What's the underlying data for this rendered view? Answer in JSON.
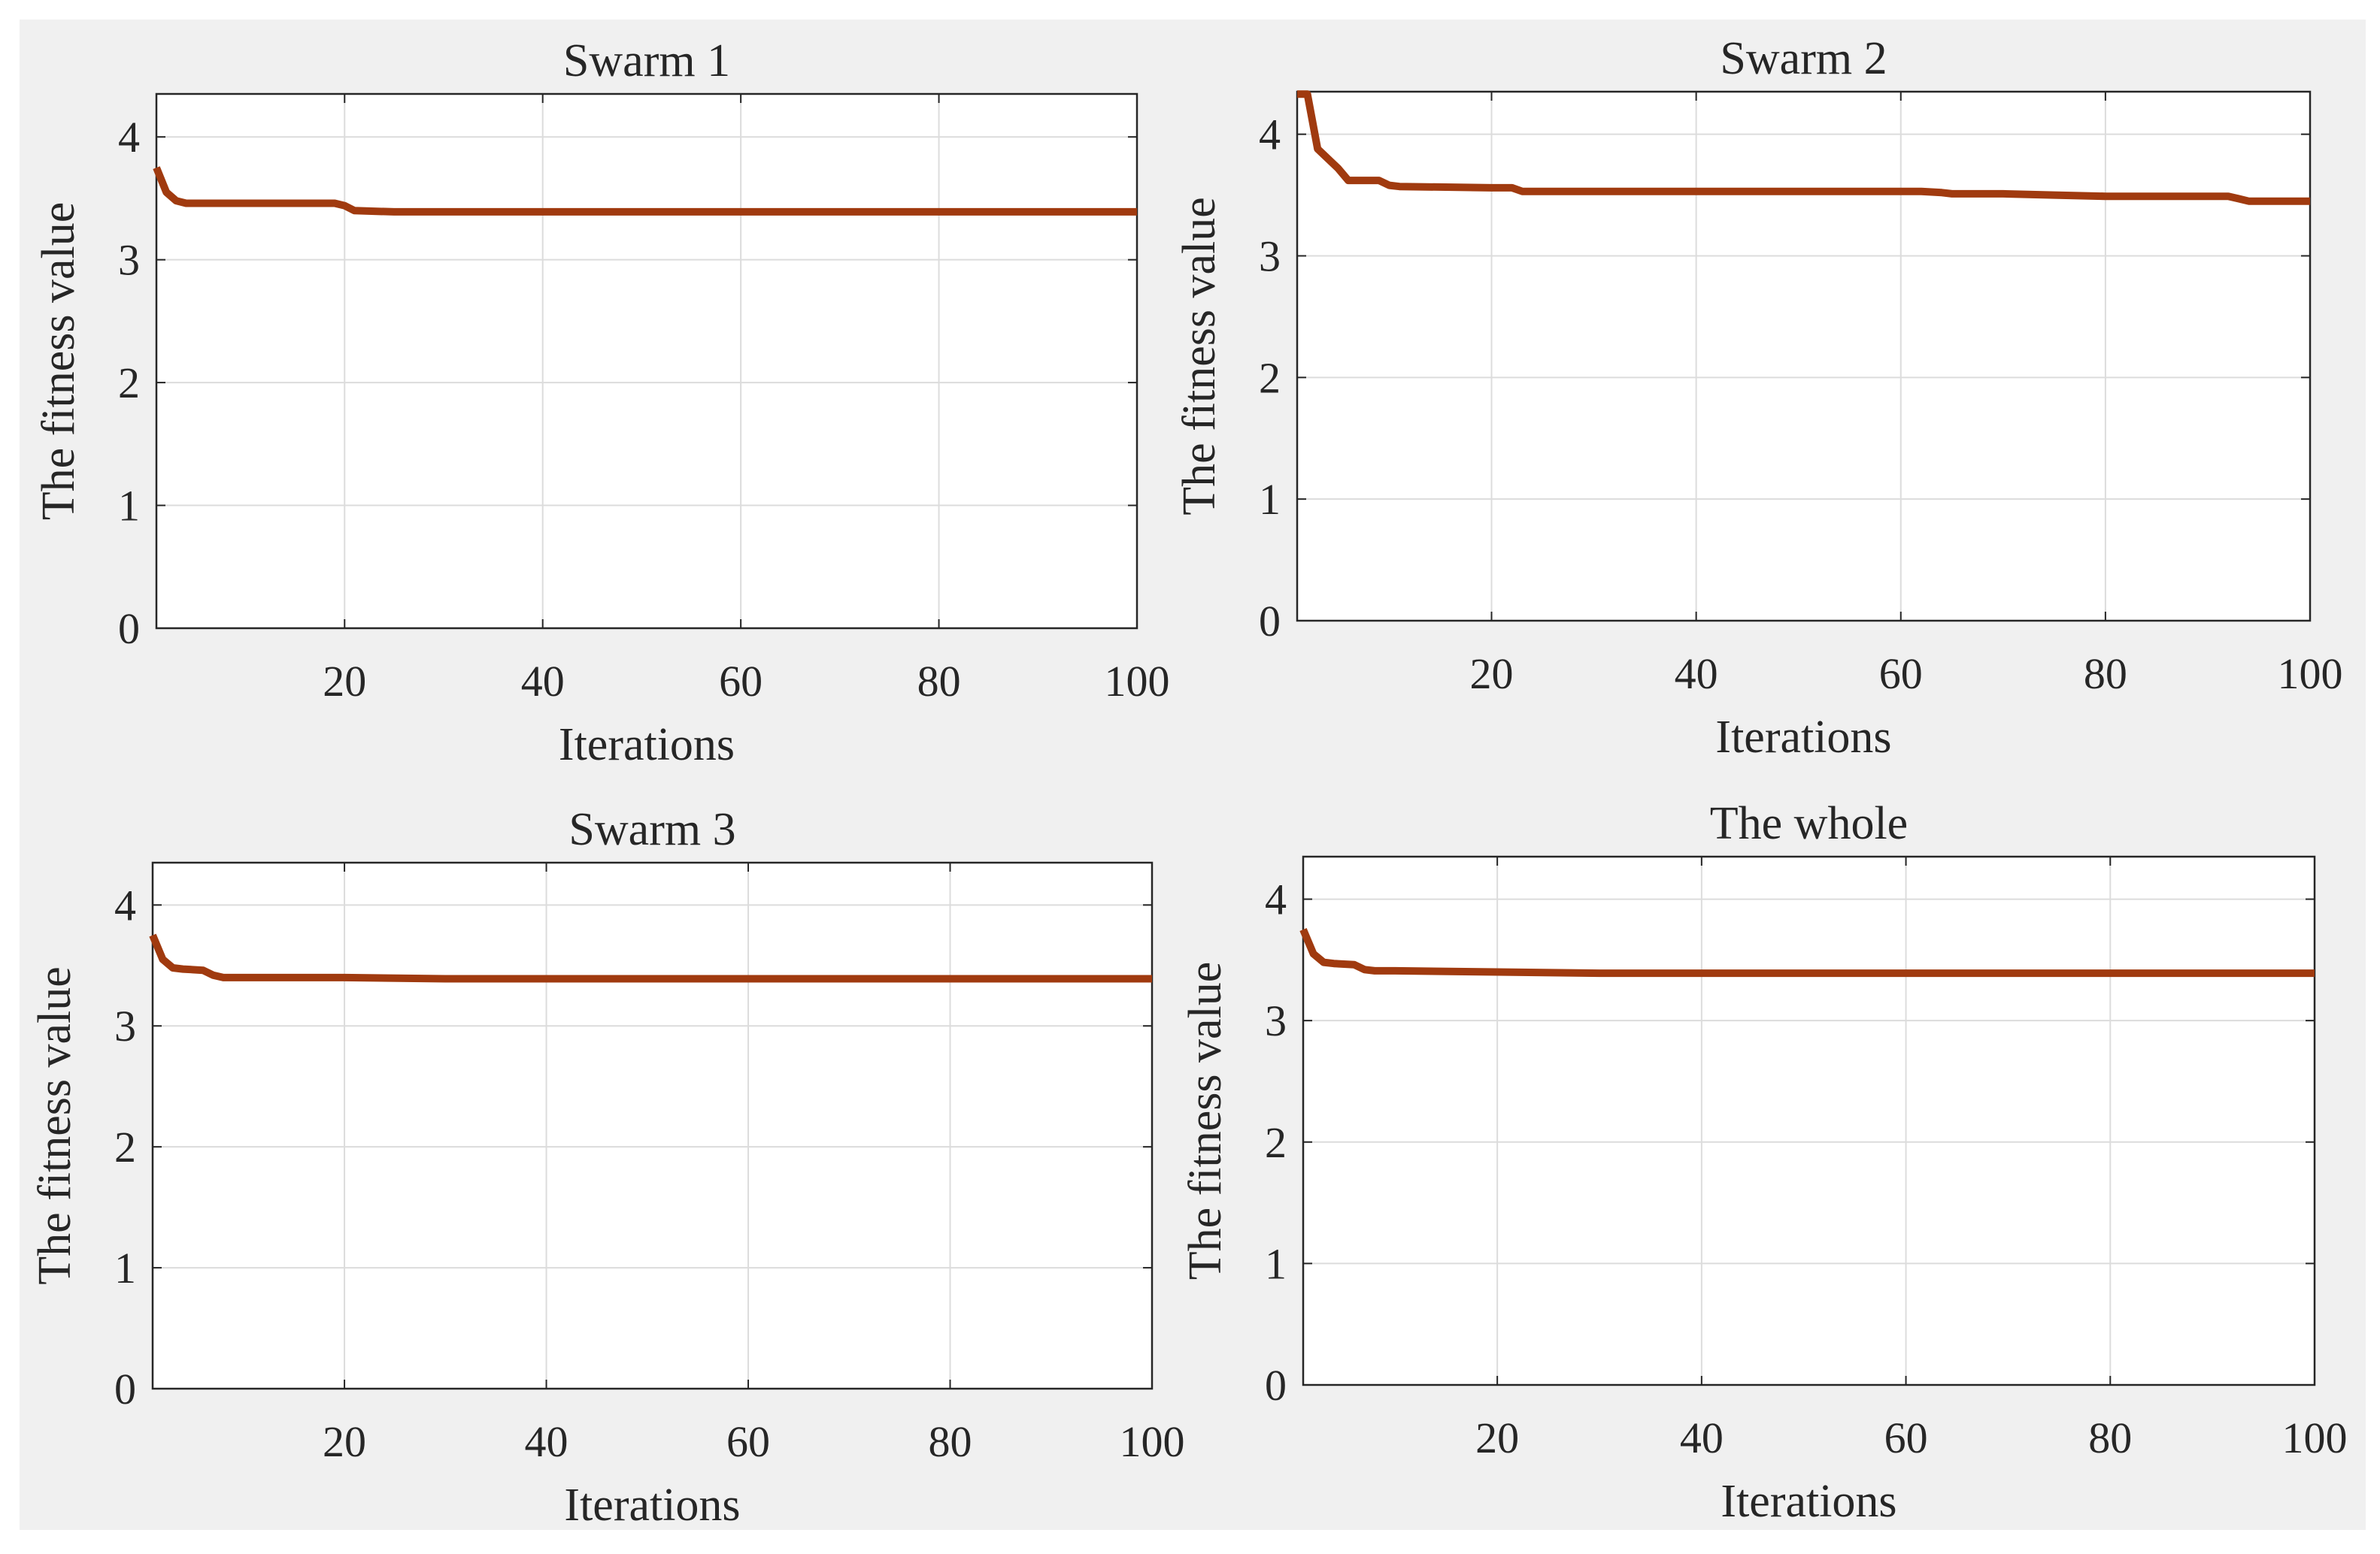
{
  "chart_data": [
    {
      "type": "line",
      "title": "Swarm 1",
      "xlabel": "Iterations",
      "ylabel": "The fitness value",
      "xlim": [
        1,
        100
      ],
      "ylim": [
        0,
        4.35
      ],
      "xticks": [
        20,
        40,
        60,
        80,
        100
      ],
      "yticks": [
        0,
        1,
        2,
        3,
        4
      ],
      "grid": true,
      "line_color": "#a03a0f",
      "series": [
        {
          "name": "fitness",
          "x": [
            1,
            2,
            3,
            4,
            5,
            10,
            15,
            19,
            20,
            21,
            25,
            40,
            60,
            80,
            100
          ],
          "values": [
            3.75,
            3.55,
            3.48,
            3.46,
            3.46,
            3.46,
            3.46,
            3.46,
            3.44,
            3.4,
            3.39,
            3.39,
            3.39,
            3.39,
            3.39
          ]
        }
      ]
    },
    {
      "type": "line",
      "title": "Swarm 2",
      "xlabel": "Iterations",
      "ylabel": "The fitness value",
      "xlim": [
        1,
        100
      ],
      "ylim": [
        0,
        4.35
      ],
      "xticks": [
        20,
        40,
        60,
        80,
        100
      ],
      "yticks": [
        0,
        1,
        2,
        3,
        4
      ],
      "grid": true,
      "line_color": "#a03a0f",
      "series": [
        {
          "name": "fitness",
          "x": [
            1,
            2,
            3,
            5,
            6,
            9,
            10,
            11,
            20,
            22,
            23,
            30,
            62,
            64,
            65,
            70,
            75,
            80,
            92,
            93,
            94,
            100
          ],
          "values": [
            4.33,
            4.33,
            3.88,
            3.72,
            3.62,
            3.62,
            3.58,
            3.57,
            3.56,
            3.56,
            3.53,
            3.53,
            3.53,
            3.52,
            3.51,
            3.51,
            3.5,
            3.49,
            3.49,
            3.47,
            3.45,
            3.45
          ]
        }
      ]
    },
    {
      "type": "line",
      "title": "Swarm 3",
      "xlabel": "Iterations",
      "ylabel": "The fitness value",
      "xlim": [
        1,
        100
      ],
      "ylim": [
        0,
        4.35
      ],
      "xticks": [
        20,
        40,
        60,
        80,
        100
      ],
      "yticks": [
        0,
        1,
        2,
        3,
        4
      ],
      "grid": true,
      "line_color": "#a03a0f",
      "series": [
        {
          "name": "fitness",
          "x": [
            1,
            2,
            3,
            4,
            6,
            7,
            8,
            10,
            20,
            30,
            40,
            60,
            80,
            100
          ],
          "values": [
            3.75,
            3.55,
            3.48,
            3.47,
            3.46,
            3.42,
            3.4,
            3.4,
            3.4,
            3.39,
            3.39,
            3.39,
            3.39,
            3.39
          ]
        }
      ]
    },
    {
      "type": "line",
      "title": "The whole",
      "xlabel": "Iterations",
      "ylabel": "The fitness value",
      "xlim": [
        1,
        100
      ],
      "ylim": [
        0,
        4.35
      ],
      "xticks": [
        20,
        40,
        60,
        80,
        100
      ],
      "yticks": [
        0,
        1,
        2,
        3,
        4
      ],
      "grid": true,
      "line_color": "#a03a0f",
      "series": [
        {
          "name": "fitness",
          "x": [
            1,
            2,
            3,
            4,
            6,
            7,
            8,
            10,
            20,
            30,
            40,
            60,
            80,
            100
          ],
          "values": [
            3.75,
            3.55,
            3.48,
            3.47,
            3.46,
            3.42,
            3.41,
            3.41,
            3.4,
            3.39,
            3.39,
            3.39,
            3.39,
            3.39
          ]
        }
      ]
    }
  ]
}
